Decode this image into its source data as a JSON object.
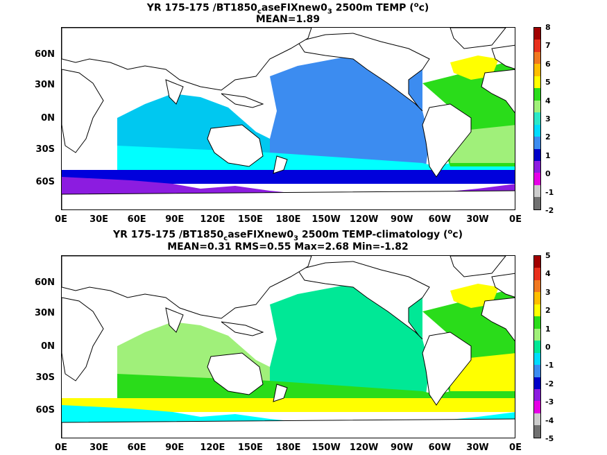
{
  "panels": [
    {
      "title_prefix": "YR 175-175 /BT1850",
      "title_sub": "c",
      "title_mid": "aseFIXnew0",
      "title_sub2": "3",
      "title_suffix": " 2500m TEMP (",
      "title_sup": "o",
      "title_end": "c)",
      "stats": "MEAN=1.89",
      "colorbar_labels": [
        "8",
        "7",
        "6",
        "5",
        "4",
        "3",
        "2",
        "1",
        "0",
        "-1",
        "-2"
      ],
      "colorbar_colors": [
        "#a00000",
        "#e8301c",
        "#f07820",
        "#ffbe00",
        "#ffff00",
        "#2adc1a",
        "#a0f07a",
        "#2ce8c8",
        "#00dcff",
        "#3c8cf0",
        "#0000c8",
        "#8c1ce0",
        "#e600e6",
        "#cccccc",
        "#707070"
      ],
      "ocean_colors": {
        "pacific": "#3c8cf0",
        "indian": "#00c8f0",
        "south1": "#00ffff",
        "south2": "#0000dc",
        "south3": "#8c1ce0",
        "atlantic_n": "#ffff00",
        "atlantic": "#2adc1a",
        "atlantic_s": "#a0f07a",
        "polar": "#e600e6"
      }
    },
    {
      "title_prefix": "YR 175-175 /BT1850",
      "title_sub": "c",
      "title_mid": "aseFIXnew0",
      "title_sub2": "3",
      "title_suffix": " 2500m TEMP-climatology (",
      "title_sup": "o",
      "title_end": "c)",
      "stats": "MEAN=0.31   RMS=0.55   Max=2.68   Min=-1.82",
      "colorbar_labels": [
        "5",
        "4",
        "3",
        "2",
        "1",
        "0",
        "-1",
        "-2",
        "-3",
        "-4",
        "-5"
      ],
      "colorbar_colors": [
        "#a00000",
        "#e8301c",
        "#f07820",
        "#ffbe00",
        "#ffff00",
        "#2adc1a",
        "#a0f07a",
        "#00e896",
        "#00dcff",
        "#3c8cf0",
        "#0000c8",
        "#8c1ce0",
        "#e600e6",
        "#cccccc",
        "#707070"
      ],
      "ocean_colors": {
        "pacific": "#00e896",
        "indian": "#a0f07a",
        "south1": "#2adc1a",
        "south2": "#ffff00",
        "south3": "#00ffff",
        "atlantic_n": "#ffff00",
        "atlantic": "#2adc1a",
        "atlantic_s": "#ffff00",
        "polar": "#2adc1a"
      }
    }
  ],
  "y_ticks": [
    "60N",
    "30N",
    "0N",
    "30S",
    "60S"
  ],
  "x_ticks": [
    "0E",
    "30E",
    "60E",
    "90E",
    "120E",
    "150E",
    "180E",
    "150W",
    "120W",
    "90W",
    "60W",
    "30W",
    "0E"
  ]
}
